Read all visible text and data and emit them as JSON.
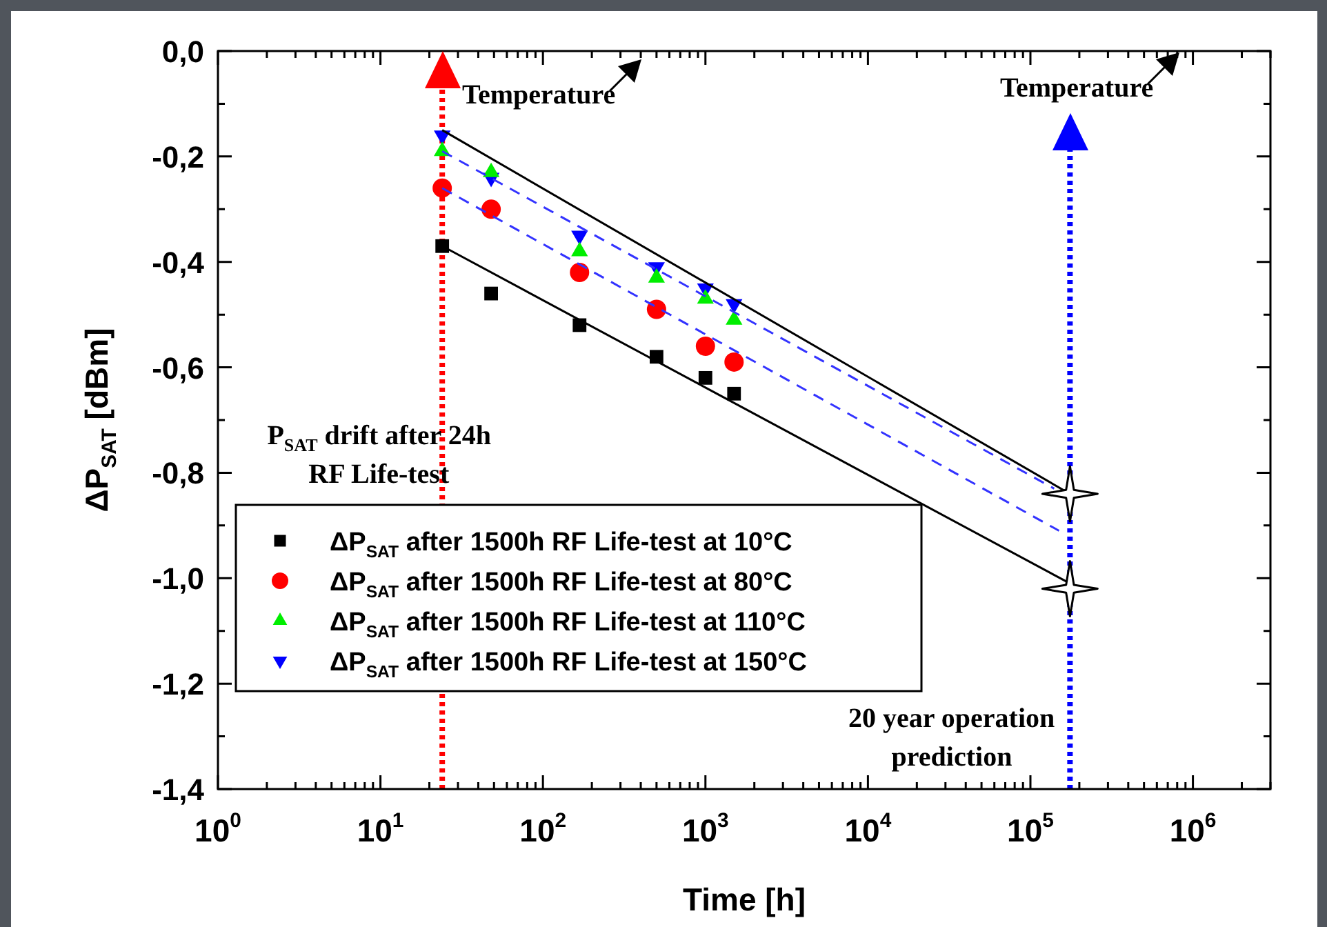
{
  "chart_data": {
    "type": "scatter",
    "xlabel": "Time [h]",
    "ylabel": "ΔP$_{SAT}$ [dBm]",
    "log": "x",
    "xlim": [
      1,
      3000000
    ],
    "ylim": [
      -1.4,
      0
    ],
    "xticks": [
      {
        "value": 1,
        "label": "10$^{0}$"
      },
      {
        "value": 2,
        "label": null
      },
      {
        "value": 3,
        "label": null
      },
      {
        "value": 4,
        "label": null
      },
      {
        "value": 5,
        "label": null
      },
      {
        "value": 6,
        "label": null
      },
      {
        "value": 7,
        "label": null
      },
      {
        "value": 8,
        "label": null
      },
      {
        "value": 9,
        "label": null
      },
      {
        "value": 10,
        "label": "10$^{1}$"
      },
      {
        "value": 20,
        "label": null
      },
      {
        "value": 30,
        "label": null
      },
      {
        "value": 40,
        "label": null
      },
      {
        "value": 50,
        "label": null
      },
      {
        "value": 60,
        "label": null
      },
      {
        "value": 70,
        "label": null
      },
      {
        "value": 80,
        "label": null
      },
      {
        "value": 90,
        "label": null
      },
      {
        "value": 100,
        "label": "10$^{2}$"
      },
      {
        "value": 200,
        "label": null
      },
      {
        "value": 300,
        "label": null
      },
      {
        "value": 400,
        "label": null
      },
      {
        "value": 500,
        "label": null
      },
      {
        "value": 600,
        "label": null
      },
      {
        "value": 700,
        "label": null
      },
      {
        "value": 800,
        "label": null
      },
      {
        "value": 900,
        "label": null
      },
      {
        "value": 1000,
        "label": "10$^{3}$"
      },
      {
        "value": 2000,
        "label": null
      },
      {
        "value": 3000,
        "label": null
      },
      {
        "value": 4000,
        "label": null
      },
      {
        "value": 5000,
        "label": null
      },
      {
        "value": 6000,
        "label": null
      },
      {
        "value": 7000,
        "label": null
      },
      {
        "value": 8000,
        "label": null
      },
      {
        "value": 9000,
        "label": null
      },
      {
        "value": 10000,
        "label": "10$^{4}$"
      },
      {
        "value": 20000,
        "label": null
      },
      {
        "value": 30000,
        "label": null
      },
      {
        "value": 40000,
        "label": null
      },
      {
        "value": 50000,
        "label": null
      },
      {
        "value": 60000,
        "label": null
      },
      {
        "value": 70000,
        "label": null
      },
      {
        "value": 80000,
        "label": null
      },
      {
        "value": 90000,
        "label": null
      },
      {
        "value": 100000,
        "label": "10$^{5}$"
      },
      {
        "value": 200000,
        "label": null
      },
      {
        "value": 300000,
        "label": null
      },
      {
        "value": 400000,
        "label": null
      },
      {
        "value": 500000,
        "label": null
      },
      {
        "value": 600000,
        "label": null
      },
      {
        "value": 700000,
        "label": null
      },
      {
        "value": 800000,
        "label": null
      },
      {
        "value": 900000,
        "label": null
      },
      {
        "value": 1000000,
        "label": "10$^{6}$"
      },
      {
        "value": 2000000,
        "label": null
      },
      {
        "value": 3000000,
        "label": null
      }
    ],
    "yticks": [
      {
        "value": 0,
        "label": "0,0"
      },
      {
        "value": -0.1,
        "label": null
      },
      {
        "value": -0.2,
        "label": "-0,2"
      },
      {
        "value": -0.3,
        "label": null
      },
      {
        "value": -0.4,
        "label": "-0,4"
      },
      {
        "value": -0.5,
        "label": null
      },
      {
        "value": -0.6,
        "label": "-0,6"
      },
      {
        "value": -0.7,
        "label": null
      },
      {
        "value": -0.8,
        "label": "-0,8"
      },
      {
        "value": -0.9,
        "label": null
      },
      {
        "value": -1.0,
        "label": "-1,0"
      },
      {
        "value": -1.1,
        "label": null
      },
      {
        "value": -1.2,
        "label": "-1,2"
      },
      {
        "value": -1.3,
        "label": null
      },
      {
        "value": -1.4,
        "label": "-1,4"
      }
    ],
    "x": [
      24,
      48,
      168,
      500,
      1000,
      1500
    ],
    "series": [
      {
        "type": "line",
        "color": "#000000",
        "line_style": "solid",
        "x": [
          24,
          175200
        ],
        "values": [
          -0.15,
          -0.84
        ]
      },
      {
        "type": "line",
        "color": "#000000",
        "line_style": "solid",
        "x": [
          24,
          175200
        ],
        "values": [
          -0.37,
          -1.01
        ]
      },
      {
        "type": "line",
        "color": "#3333ff",
        "line_style": "dashed",
        "x": [
          24,
          140000
        ],
        "values": [
          -0.19,
          -0.83
        ]
      },
      {
        "type": "line",
        "color": "#3333ff",
        "line_style": "dashed",
        "x": [
          24,
          150000
        ],
        "values": [
          -0.26,
          -0.91
        ]
      },
      {
        "name": "ΔP$_{SAT}$ after 1500h RF Life-test at 10°C",
        "color": "#000000",
        "marker": "square",
        "values": [
          -0.37,
          -0.46,
          -0.52,
          -0.58,
          -0.62,
          -0.65
        ]
      },
      {
        "name": "ΔP$_{SAT}$ after 1500h RF Life-test at 80°C",
        "color": "#ff0000",
        "marker": "circle",
        "values": [
          -0.26,
          -0.3,
          -0.42,
          -0.49,
          -0.56,
          -0.59
        ]
      },
      {
        "name": "ΔP$_{SAT}$ after 1500h RF Life-test at 110°C",
        "color": "#00ee00",
        "marker": "triangle",
        "values": [
          -0.19,
          -0.23,
          -0.38,
          -0.43,
          -0.47,
          -0.51
        ]
      },
      {
        "name": "ΔP$_{SAT}$ after 1500h RF Life-test at 150°C",
        "color": "#0000ff",
        "marker": "triangle_down",
        "values": [
          -0.16,
          -0.24,
          -0.35,
          -0.41,
          -0.45,
          -0.48
        ]
      },
      {
        "color": "#000000",
        "marker": "star",
        "x": [
          175200,
          175200
        ],
        "values": [
          -0.84,
          -1.02
        ]
      }
    ],
    "ref_lines": [
      {
        "axis": "x",
        "value": 24,
        "label": "P$_{SAT}$ drift after 24h\nRF Life-test",
        "color": "#ff0000",
        "line_style": "dotted"
      },
      {
        "axis": "x",
        "value": 175200,
        "label": "20 year operation\nprediction",
        "color": "#0000ff",
        "line_style": "dotted"
      }
    ],
    "annotations": [
      "Temperature",
      "Temperature"
    ],
    "legend": "bottom left"
  }
}
